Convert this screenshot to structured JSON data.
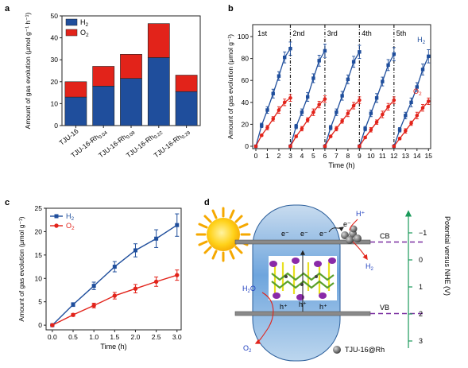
{
  "colors": {
    "h2": "#1f4e9c",
    "o2": "#e2231a",
    "axis": "#222222",
    "vb_cb": "#7a2fa0",
    "nhe_axis": "#1a9a5a"
  },
  "panels": {
    "a": {
      "letter": "a"
    },
    "b": {
      "letter": "b"
    },
    "c": {
      "letter": "c"
    },
    "d": {
      "letter": "d"
    }
  },
  "chart_data": [
    {
      "panel": "a",
      "type": "bar",
      "stacked": true,
      "ylabel": "Amount of gas evolution (μmol g⁻¹ h⁻¹)",
      "ylim": [
        0,
        50
      ],
      "yticks": [
        0,
        10,
        20,
        30,
        40,
        50
      ],
      "categories": [
        {
          "base": "TJU-16",
          "sub": ""
        },
        {
          "base": "TJU-16-Rh",
          "sub": "0.04"
        },
        {
          "base": "TJU-16-Rh",
          "sub": "0.09"
        },
        {
          "base": "TJU-16-Rh",
          "sub": "0.22"
        },
        {
          "base": "TJU-16-Rh",
          "sub": "0.29"
        }
      ],
      "series": [
        {
          "name": "H",
          "sub": "2",
          "color": "#1f4e9c",
          "values": [
            13,
            18,
            21.5,
            31,
            15.5
          ]
        },
        {
          "name": "O",
          "sub": "2",
          "color": "#e2231a",
          "values": [
            7,
            9,
            11,
            15.5,
            7.5
          ]
        }
      ],
      "legend": "top-left"
    },
    {
      "panel": "b",
      "type": "line",
      "xlabel": "Time (h)",
      "ylabel": "Amount of gas evolution (μmol g⁻¹)",
      "xlim": [
        0,
        15
      ],
      "ylim": [
        0,
        100
      ],
      "xticks": [
        0,
        1,
        2,
        3,
        4,
        5,
        6,
        7,
        8,
        9,
        10,
        11,
        12,
        13,
        14,
        15
      ],
      "yticks": [
        0,
        20,
        40,
        60,
        80,
        100
      ],
      "cycle_lines": [
        3,
        6,
        9,
        12
      ],
      "cycle_labels": [
        {
          "x": 0.15,
          "text": "1st"
        },
        {
          "x": 3.2,
          "text": "2nd"
        },
        {
          "x": 6.2,
          "text": "3rd"
        },
        {
          "x": 9.2,
          "text": "4th"
        },
        {
          "x": 12.2,
          "text": "5th"
        }
      ],
      "series": [
        {
          "name": "H",
          "sub": "2",
          "color": "#1f4e9c",
          "label_x": 14.85,
          "label_y": 95,
          "cycles": [
            {
              "x": [
                0,
                0.5,
                1,
                1.5,
                2,
                2.5,
                3
              ],
              "y": [
                0,
                19,
                33,
                48,
                64,
                81,
                89
              ],
              "err": [
                1,
                2,
                3,
                4,
                4,
                5,
                6
              ]
            },
            {
              "x": [
                3,
                3.5,
                4,
                4.5,
                5,
                5.5,
                6
              ],
              "y": [
                0,
                18,
                31,
                45,
                62,
                78,
                87
              ],
              "err": [
                1,
                2,
                3,
                4,
                4,
                5,
                6
              ]
            },
            {
              "x": [
                6,
                6.5,
                7,
                7.5,
                8,
                8.5,
                9
              ],
              "y": [
                0,
                17,
                31,
                46,
                61,
                77,
                86
              ],
              "err": [
                1,
                2,
                3,
                4,
                4,
                5,
                6
              ]
            },
            {
              "x": [
                9,
                9.5,
                10,
                10.5,
                11,
                11.5,
                12
              ],
              "y": [
                0,
                16,
                30,
                44,
                59,
                74,
                84
              ],
              "err": [
                1,
                2,
                3,
                4,
                4,
                5,
                6
              ]
            },
            {
              "x": [
                12,
                12.5,
                13,
                13.5,
                14,
                14.5,
                15
              ],
              "y": [
                0,
                15,
                28,
                40,
                54,
                70,
                82
              ],
              "err": [
                1,
                2,
                3,
                4,
                4,
                5,
                6
              ]
            }
          ]
        },
        {
          "name": "O",
          "sub": "2",
          "color": "#e2231a",
          "label_x": 14.5,
          "label_y": 48,
          "cycles": [
            {
              "x": [
                0,
                0.5,
                1,
                1.5,
                2,
                2.5,
                3
              ],
              "y": [
                0,
                10,
                17,
                25,
                33,
                40,
                44
              ],
              "err": [
                1,
                1,
                2,
                2,
                3,
                3,
                3
              ]
            },
            {
              "x": [
                3,
                3.5,
                4,
                4.5,
                5,
                5.5,
                6
              ],
              "y": [
                0,
                9,
                16,
                24,
                31,
                38,
                43
              ],
              "err": [
                1,
                1,
                2,
                2,
                3,
                3,
                3
              ]
            },
            {
              "x": [
                6,
                6.5,
                7,
                7.5,
                8,
                8.5,
                9
              ],
              "y": [
                0,
                9,
                16,
                23,
                30,
                37,
                42
              ],
              "err": [
                1,
                1,
                2,
                2,
                3,
                3,
                3
              ]
            },
            {
              "x": [
                9,
                9.5,
                10,
                10.5,
                11,
                11.5,
                12
              ],
              "y": [
                0,
                8,
                15,
                22,
                29,
                36,
                42
              ],
              "err": [
                1,
                1,
                2,
                2,
                3,
                3,
                3
              ]
            },
            {
              "x": [
                12,
                12.5,
                13,
                13.5,
                14,
                14.5,
                15
              ],
              "y": [
                0,
                7,
                14,
                21,
                28,
                35,
                41
              ],
              "err": [
                1,
                1,
                2,
                2,
                3,
                3,
                3
              ]
            }
          ]
        }
      ]
    },
    {
      "panel": "c",
      "type": "line",
      "xlabel": "Time (h)",
      "ylabel": "Amount of gas evolution (μmol g⁻¹)",
      "xlim": [
        -0.15,
        3.1
      ],
      "ylim": [
        -1,
        25
      ],
      "xticks": [
        0.0,
        0.5,
        1.0,
        1.5,
        2.0,
        2.5,
        3.0
      ],
      "yticks": [
        0,
        5,
        10,
        15,
        20,
        25
      ],
      "legend": "top-left",
      "series": [
        {
          "name": "H",
          "sub": "2",
          "color": "#1f4e9c",
          "x": [
            0,
            0.5,
            1.0,
            1.5,
            2.0,
            2.5,
            3.0
          ],
          "y": [
            0,
            4.4,
            8.4,
            12.5,
            16.0,
            18.5,
            21.4
          ],
          "err": [
            0.1,
            0.4,
            0.8,
            1.1,
            1.4,
            1.9,
            2.4
          ]
        },
        {
          "name": "O",
          "sub": "2",
          "color": "#e2231a",
          "x": [
            0,
            0.5,
            1.0,
            1.5,
            2.0,
            2.5,
            3.0
          ],
          "y": [
            0,
            2.2,
            4.2,
            6.3,
            7.8,
            9.3,
            10.7
          ],
          "err": [
            0.1,
            0.3,
            0.5,
            0.7,
            0.9,
            1.0,
            1.1
          ]
        }
      ]
    }
  ],
  "diagram_d": {
    "axis_label": "Potential versus NHE (V)",
    "ticks": [
      "−1",
      "0",
      "1",
      "2",
      "3"
    ],
    "cb_label": "CB",
    "vb_label": "VB",
    "electron_label": "e⁻",
    "hole_label": "h⁺",
    "proton_label": "H⁺",
    "h2_label": {
      "base": "H",
      "sub": "2"
    },
    "h2o_label": {
      "base": "H",
      "sub": "2",
      "tail": "O"
    },
    "o2_label": {
      "base": "O",
      "sub": "2"
    },
    "catalyst_label": "TJU-16@Rh"
  }
}
